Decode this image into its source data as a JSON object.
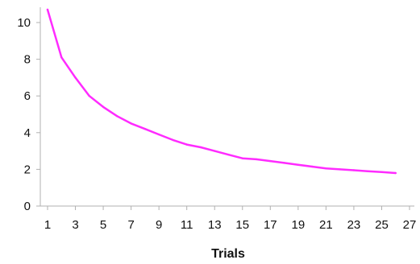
{
  "chart_data": {
    "type": "line",
    "title": "",
    "xlabel": "Trials",
    "ylabel": "",
    "xlim": [
      1,
      27
    ],
    "ylim": [
      0,
      10
    ],
    "x_ticks": [
      "1",
      "3",
      "5",
      "7",
      "9",
      "11",
      "13",
      "15",
      "17",
      "19",
      "21",
      "23",
      "25",
      "27"
    ],
    "y_ticks": [
      "0",
      "2",
      "4",
      "6",
      "8",
      "10"
    ],
    "grid": false,
    "legend": "none",
    "series": [
      {
        "color": "#ff2bff",
        "x": [
          1,
          2,
          3,
          4,
          5,
          6,
          7,
          8,
          9,
          10,
          11,
          12,
          13,
          14,
          15,
          16,
          17,
          18,
          19,
          20,
          21,
          22,
          23,
          24,
          25,
          26
        ],
        "y": [
          10.7,
          8.1,
          7.0,
          6.0,
          5.4,
          4.9,
          4.5,
          4.2,
          3.9,
          3.6,
          3.35,
          3.2,
          3.0,
          2.8,
          2.6,
          2.55,
          2.45,
          2.35,
          2.25,
          2.15,
          2.05,
          2.0,
          1.95,
          1.9,
          1.85,
          1.8
        ]
      }
    ]
  }
}
